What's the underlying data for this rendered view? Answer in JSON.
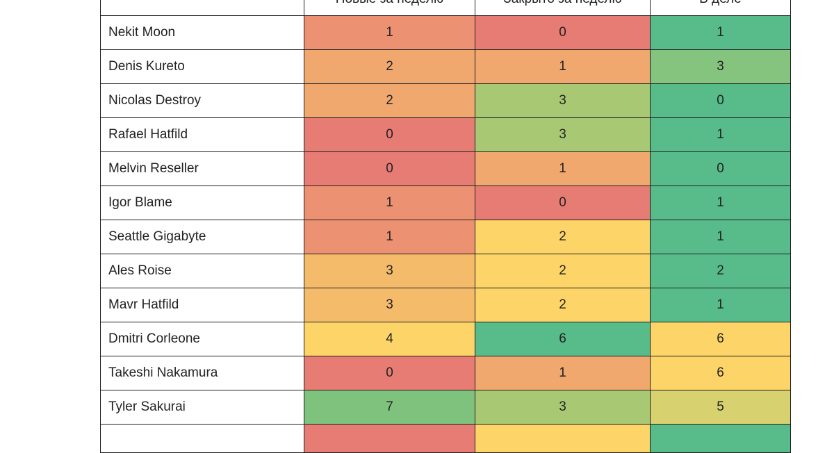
{
  "table": {
    "columns": [
      "",
      "Новые за неделю",
      "Закрыто за неделю",
      "В деле"
    ],
    "colors": {
      "red": "#e67c73",
      "salmon": "#ec9273",
      "orange": "#f0a86f",
      "light_orange": "#f4bb6b",
      "yellow": "#fdd468",
      "yellow_green": "#d7d16f",
      "light_green": "#a9c874",
      "green": "#7fc27d",
      "teal_green": "#57bb8a"
    },
    "rows": [
      {
        "name": "Nekit Moon",
        "new": "1",
        "closed": "0",
        "in_work": "1",
        "new_color": "#ec9273",
        "closed_color": "#e67c73",
        "in_work_color": "#57bb8a"
      },
      {
        "name": "Denis Kureto",
        "new": "2",
        "closed": "1",
        "in_work": "3",
        "new_color": "#f0a86f",
        "closed_color": "#f0a86f",
        "in_work_color": "#84c47e"
      },
      {
        "name": "Nicolas Destroy",
        "new": "2",
        "closed": "3",
        "in_work": "0",
        "new_color": "#f0a86f",
        "closed_color": "#a9c874",
        "in_work_color": "#57bb8a"
      },
      {
        "name": "Rafael Hatfild",
        "new": "0",
        "closed": "3",
        "in_work": "1",
        "new_color": "#e67c73",
        "closed_color": "#a9c874",
        "in_work_color": "#57bb8a"
      },
      {
        "name": "Melvin Reseller",
        "new": "0",
        "closed": "1",
        "in_work": "0",
        "new_color": "#e67c73",
        "closed_color": "#f0a86f",
        "in_work_color": "#57bb8a"
      },
      {
        "name": "Igor Blame",
        "new": "1",
        "closed": "0",
        "in_work": "1",
        "new_color": "#ec9273",
        "closed_color": "#e67c73",
        "in_work_color": "#57bb8a"
      },
      {
        "name": "Seattle Gigabyte",
        "new": "1",
        "closed": "2",
        "in_work": "1",
        "new_color": "#ec9273",
        "closed_color": "#fdd468",
        "in_work_color": "#57bb8a"
      },
      {
        "name": "Ales Roise",
        "new": "3",
        "closed": "2",
        "in_work": "2",
        "new_color": "#f4bb6b",
        "closed_color": "#fdd468",
        "in_work_color": "#57bb8a"
      },
      {
        "name": "Mavr Hatfild",
        "new": "3",
        "closed": "2",
        "in_work": "1",
        "new_color": "#f4bb6b",
        "closed_color": "#fdd468",
        "in_work_color": "#57bb8a"
      },
      {
        "name": "Dmitri Corleone",
        "new": "4",
        "closed": "6",
        "in_work": "6",
        "new_color": "#fdd468",
        "closed_color": "#57bb8a",
        "in_work_color": "#fdd468"
      },
      {
        "name": "Takeshi Nakamura",
        "new": "0",
        "closed": "1",
        "in_work": "6",
        "new_color": "#e67c73",
        "closed_color": "#f0a86f",
        "in_work_color": "#fdd468"
      },
      {
        "name": "Tyler Sakurai",
        "new": "7",
        "closed": "3",
        "in_work": "5",
        "new_color": "#7fc27d",
        "closed_color": "#a9c874",
        "in_work_color": "#d7d16f"
      }
    ],
    "partial_row": {
      "new_color": "#e67c73",
      "closed_color": "#fdd468",
      "in_work_color": "#57bb8a"
    }
  }
}
